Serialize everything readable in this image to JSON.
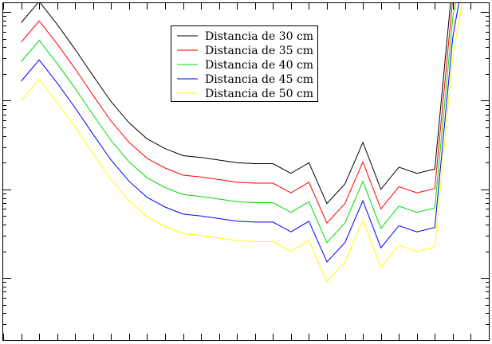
{
  "chart_data": {
    "type": "line",
    "title": "",
    "xlabel": "",
    "ylabel": "",
    "yscale": "log",
    "grid": false,
    "legend_position": "top-center",
    "x": [
      1,
      2,
      3,
      4,
      5,
      6,
      7,
      8,
      9,
      10,
      11,
      12,
      13,
      14,
      15,
      16,
      17,
      18,
      19,
      20,
      21,
      22,
      23,
      24,
      25,
      26
    ],
    "xlim": [
      0,
      27
    ],
    "ylim_decades": [
      -1.7,
      2.1
    ],
    "series": [
      {
        "name": "Distancia de 30 cm",
        "color": "#000000",
        "values": [
          1.88,
          2.12,
          1.86,
          1.58,
          1.28,
          0.99,
          0.75,
          0.57,
          0.46,
          0.38,
          0.36,
          0.33,
          0.3,
          0.29,
          0.29,
          0.18,
          0.3,
          -0.16,
          0.06,
          0.53,
          -0.0,
          0.25,
          0.18,
          0.23,
          2.38,
          3.53
        ]
      },
      {
        "name": "Distancia de 35 cm",
        "color": "#ff0000",
        "values": [
          1.66,
          1.9,
          1.64,
          1.36,
          1.06,
          0.77,
          0.53,
          0.35,
          0.24,
          0.16,
          0.14,
          0.11,
          0.08,
          0.07,
          0.07,
          -0.04,
          0.08,
          -0.38,
          -0.16,
          0.31,
          -0.22,
          0.03,
          -0.04,
          0.01,
          2.16,
          3.31
        ]
      },
      {
        "name": "Distancia de 40 cm",
        "color": "#00dd00",
        "values": [
          1.44,
          1.68,
          1.42,
          1.14,
          0.84,
          0.55,
          0.31,
          0.13,
          0.02,
          -0.06,
          -0.08,
          -0.11,
          -0.14,
          -0.15,
          -0.15,
          -0.26,
          -0.14,
          -0.6,
          -0.38,
          0.09,
          -0.44,
          -0.19,
          -0.26,
          -0.21,
          1.94,
          3.09
        ]
      },
      {
        "name": "Distancia de 45 cm",
        "color": "#0000ff",
        "values": [
          1.22,
          1.46,
          1.2,
          0.92,
          0.62,
          0.33,
          0.09,
          -0.09,
          -0.2,
          -0.28,
          -0.3,
          -0.33,
          -0.36,
          -0.37,
          -0.37,
          -0.48,
          -0.36,
          -0.82,
          -0.6,
          -0.13,
          -0.66,
          -0.41,
          -0.48,
          -0.43,
          1.72,
          2.87
        ]
      },
      {
        "name": "Distancia de 50 cm",
        "color": "#ffff00",
        "values": [
          1.0,
          1.24,
          0.98,
          0.7,
          0.4,
          0.11,
          -0.13,
          -0.31,
          -0.42,
          -0.5,
          -0.52,
          -0.55,
          -0.58,
          -0.59,
          -0.59,
          -0.7,
          -0.58,
          -1.04,
          -0.82,
          -0.35,
          -0.88,
          -0.63,
          -0.7,
          -0.65,
          1.5,
          2.65
        ]
      }
    ]
  }
}
